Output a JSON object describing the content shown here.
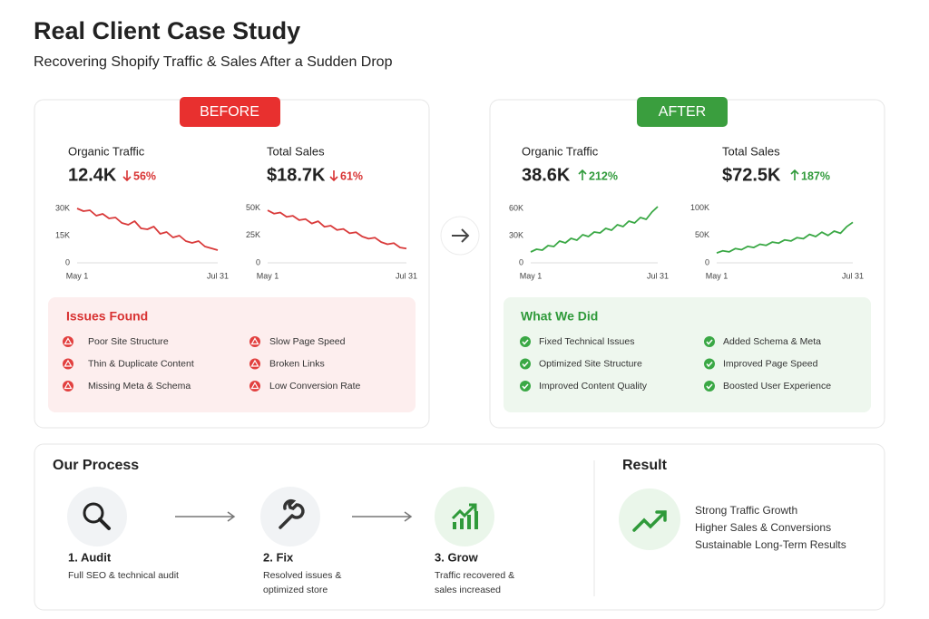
{
  "header": {
    "title": "Real Client Case Study",
    "subtitle": "Recovering Shopify Traffic & Sales After a Sudden Drop"
  },
  "before": {
    "badge": "BEFORE",
    "metrics": [
      {
        "label": "Organic Traffic",
        "value": "12.4K",
        "change": "56%",
        "chart": {
          "type": "line",
          "color": "#d93a3a",
          "ylim": [
            0,
            35000
          ],
          "yticks": [
            0,
            {
              "value": 15000,
              "label": "15K"
            },
            {
              "value": 30000,
              "label": "30K"
            }
          ],
          "categories": [
            "May 1",
            null,
            null,
            null,
            null,
            null,
            null,
            null,
            null,
            null,
            null,
            null,
            null,
            null,
            null,
            null,
            null,
            null,
            null,
            null,
            null,
            null,
            "Jul 31"
          ],
          "values": [
            30000,
            28500,
            29000,
            26000,
            27000,
            24500,
            25000,
            22000,
            21000,
            23000,
            19000,
            18500,
            20000,
            16000,
            17000,
            14000,
            15000,
            12000,
            11000,
            12000,
            9000,
            8000,
            7000
          ]
        }
      },
      {
        "label": "Total Sales",
        "value": "$18.7K",
        "change": "61%",
        "chart": {
          "type": "line",
          "color": "#d93a3a",
          "ylim": [
            0,
            58000
          ],
          "yticks": [
            0,
            {
              "value": 25000,
              "label": "25K"
            },
            {
              "value": 50000,
              "label": "50K"
            }
          ],
          "categories": [
            "May 1",
            null,
            null,
            null,
            null,
            null,
            null,
            null,
            null,
            null,
            null,
            null,
            null,
            null,
            null,
            null,
            null,
            null,
            null,
            null,
            null,
            null,
            "Jul 31"
          ],
          "values": [
            48000,
            45000,
            46000,
            42000,
            43000,
            39000,
            40000,
            36000,
            38000,
            33000,
            34000,
            30000,
            31000,
            27000,
            28000,
            24000,
            22000,
            23000,
            19000,
            17000,
            18000,
            14000,
            13000
          ]
        }
      }
    ],
    "box": {
      "title": "Issues Found",
      "items": [
        "Poor Site Structure",
        "Slow Page Speed",
        "Thin & Duplicate Content",
        "Broken Links",
        "Missing Meta & Schema",
        "Low Conversion Rate"
      ]
    }
  },
  "after": {
    "badge": "AFTER",
    "metrics": [
      {
        "label": "Organic Traffic",
        "value": "38.6K",
        "change": "212%",
        "chart": {
          "type": "line",
          "color": "#3aa845",
          "ylim": [
            0,
            70000
          ],
          "yticks": [
            0,
            {
              "value": 30000,
              "label": "30K"
            },
            {
              "value": 60000,
              "label": "60K"
            }
          ],
          "categories": [
            "May 1",
            null,
            null,
            null,
            null,
            null,
            null,
            null,
            null,
            null,
            null,
            null,
            null,
            null,
            null,
            null,
            null,
            null,
            null,
            null,
            null,
            null,
            "Jul 31"
          ],
          "values": [
            12000,
            15000,
            14000,
            19000,
            18000,
            24000,
            22000,
            27000,
            25000,
            31000,
            29000,
            34000,
            33000,
            38000,
            36000,
            42000,
            40000,
            46000,
            44000,
            50000,
            48000,
            56000,
            62000
          ]
        }
      },
      {
        "label": "Total Sales",
        "value": "$72.5K",
        "change": "187%",
        "chart": {
          "type": "line",
          "color": "#3aa845",
          "ylim": [
            0,
            116000
          ],
          "yticks": [
            0,
            {
              "value": 50000,
              "label": "50K"
            },
            {
              "value": 100000,
              "label": "100K"
            }
          ],
          "categories": [
            "May 1",
            null,
            null,
            null,
            null,
            null,
            null,
            null,
            null,
            null,
            null,
            null,
            null,
            null,
            null,
            null,
            null,
            null,
            null,
            null,
            null,
            null,
            "Jul 31"
          ],
          "values": [
            18000,
            22000,
            20000,
            26000,
            24000,
            30000,
            28000,
            34000,
            32000,
            38000,
            36000,
            42000,
            40000,
            46000,
            44000,
            52000,
            48000,
            56000,
            50000,
            58000,
            54000,
            66000,
            74000
          ]
        }
      }
    ],
    "box": {
      "title": "What We Did",
      "items": [
        "Fixed Technical Issues",
        "Added Schema & Meta",
        "Optimized Site Structure",
        "Improved Page Speed",
        "Improved Content Quality",
        "Boosted User Experience"
      ]
    }
  },
  "process": {
    "title": "Our Process",
    "steps": [
      {
        "title": "1. Audit",
        "desc": [
          "Full SEO & technical audit"
        ]
      },
      {
        "title": "2. Fix",
        "desc": [
          "Resolved issues &",
          "optimized store"
        ]
      },
      {
        "title": "3. Grow",
        "desc": [
          "Traffic recovered &",
          "sales increased"
        ]
      }
    ]
  },
  "result": {
    "title": "Result",
    "items": [
      "Strong Traffic Growth",
      "Higher Sales & Conversions",
      "Sustainable Long-Term Results"
    ]
  }
}
